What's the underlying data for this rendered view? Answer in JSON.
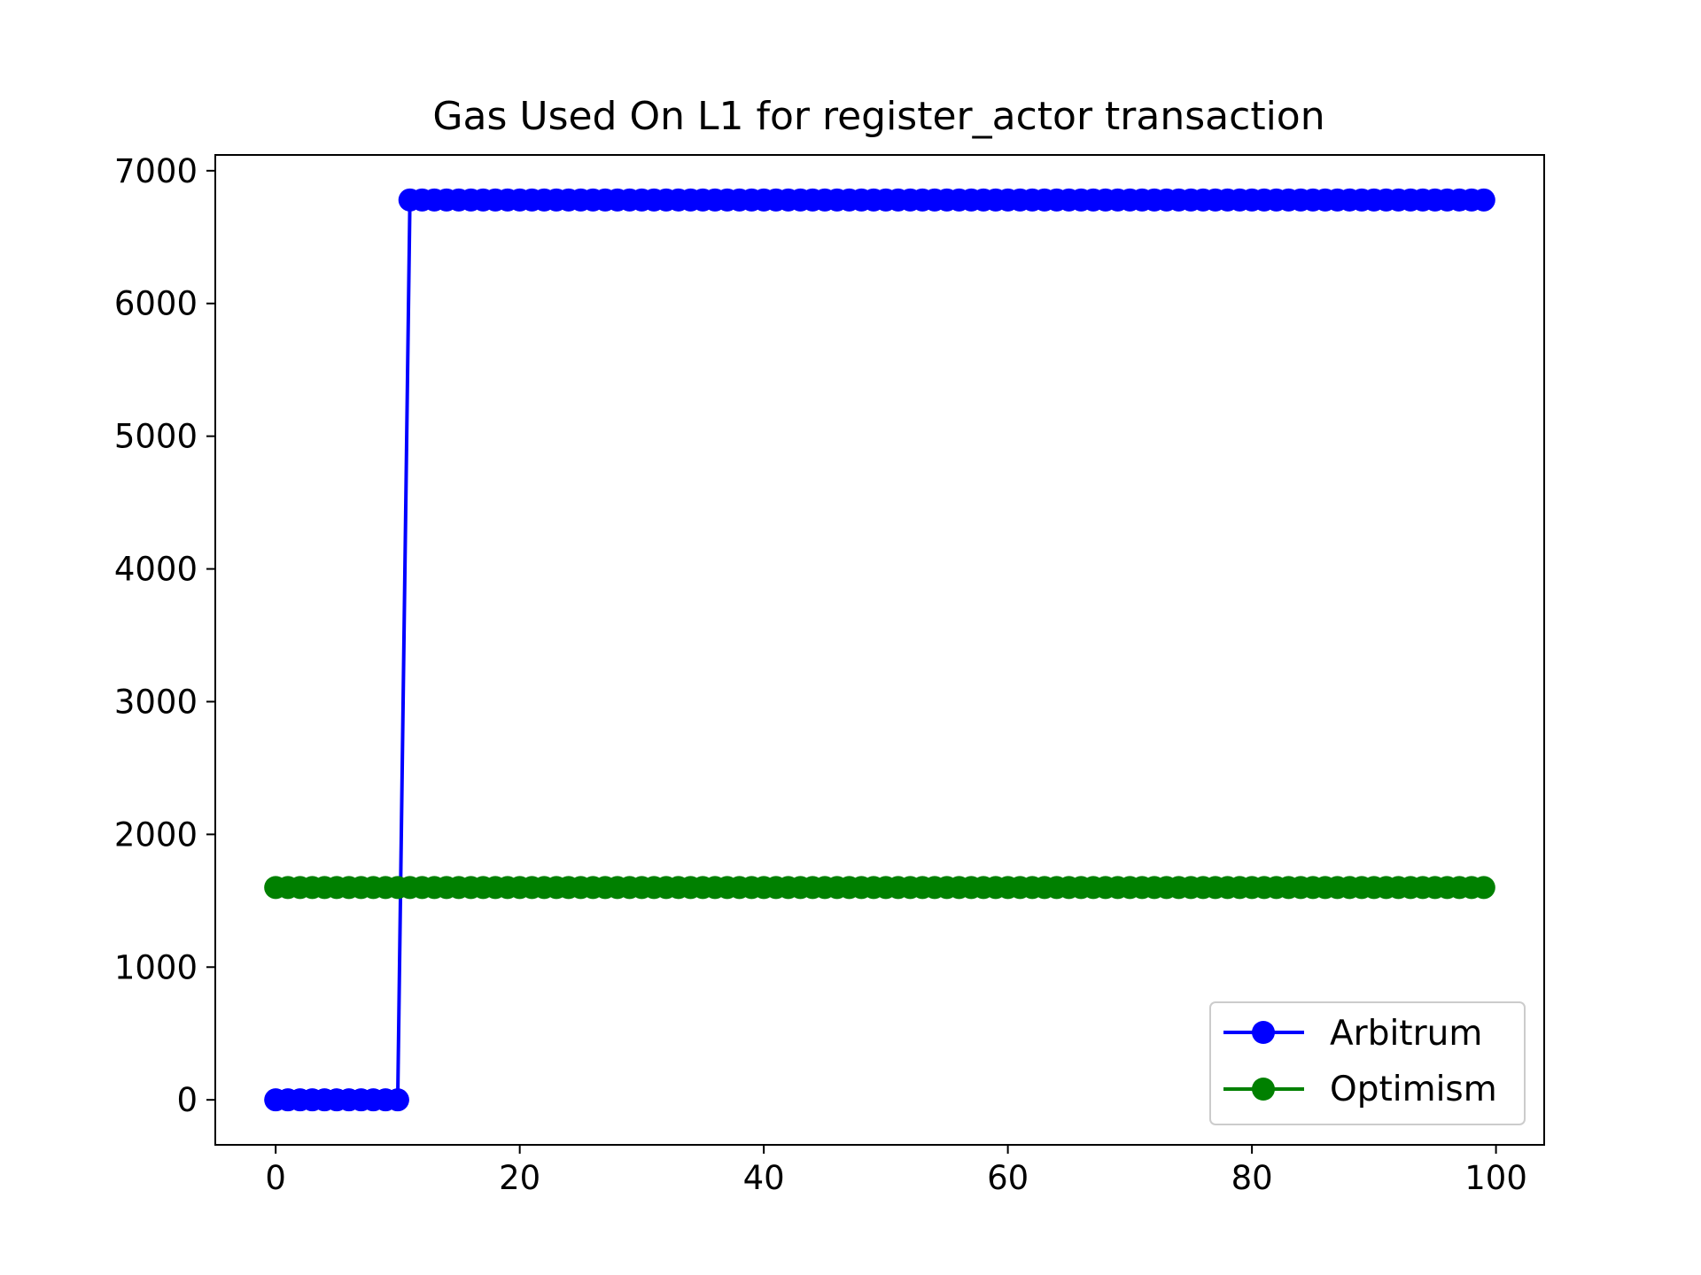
{
  "chart_data": {
    "type": "line",
    "title": "Gas Used On L1 for register_actor transaction",
    "xlabel": "",
    "ylabel": "",
    "xlim": [
      -4.95,
      103.95
    ],
    "ylim": [
      -339,
      7119
    ],
    "x_ticks": [
      0,
      20,
      40,
      60,
      80,
      100
    ],
    "y_ticks": [
      0,
      1000,
      2000,
      3000,
      4000,
      5000,
      6000,
      7000
    ],
    "x_tick_labels": [
      "0",
      "20",
      "40",
      "60",
      "80",
      "100"
    ],
    "y_tick_labels": [
      "0",
      "1000",
      "2000",
      "3000",
      "4000",
      "5000",
      "6000",
      "7000"
    ],
    "grid": false,
    "legend_position": "bottom-right",
    "series": [
      {
        "name": "Arbitrum",
        "color": "#0000ff",
        "marker": "circle",
        "x_start": 0,
        "x_end": 99,
        "segments": [
          {
            "x_from": 0,
            "x_to": 10,
            "value": 0
          },
          {
            "x_from": 11,
            "x_to": 99,
            "value": 6780
          }
        ]
      },
      {
        "name": "Optimism",
        "color": "#008000",
        "marker": "circle",
        "x_start": 0,
        "x_end": 99,
        "segments": [
          {
            "x_from": 0,
            "x_to": 99,
            "value": 1600
          }
        ]
      }
    ]
  }
}
